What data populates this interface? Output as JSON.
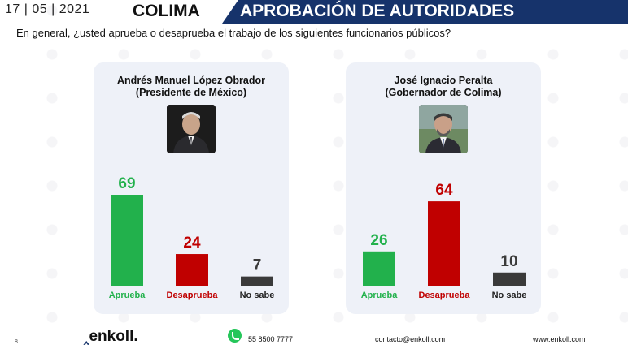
{
  "header": {
    "date": "17 | 05 | 2021",
    "state": "COLIMA",
    "title": "APROBACIÓN DE AUTORIDADES"
  },
  "question": "En general, ¿usted aprueba o desaprueba el trabajo de los siguientes funcionarios públicos?",
  "colors": {
    "aprueba": "#22b14c",
    "desaprueba": "#c00000",
    "no_sabe": "#3a3a3a",
    "header_bar": "#16336b"
  },
  "chart_data": [
    {
      "type": "bar",
      "title": "Andrés Manuel López Obrador",
      "subtitle": "(Presidente de México)",
      "categories": [
        "Aprueba",
        "Desaprueba",
        "No sabe"
      ],
      "values": [
        69,
        24,
        7
      ],
      "colors": [
        "#22b14c",
        "#c00000",
        "#3a3a3a"
      ]
    },
    {
      "type": "bar",
      "title": "José Ignacio Peralta",
      "subtitle": "(Gobernador de Colima)",
      "categories": [
        "Aprueba",
        "Desaprueba",
        "No sabe"
      ],
      "values": [
        26,
        64,
        10
      ],
      "colors": [
        "#22b14c",
        "#c00000",
        "#3a3a3a"
      ]
    }
  ],
  "footer": {
    "page": "8",
    "logo": "enkoll.",
    "phone": "55 8500 7777",
    "email": "contacto@enkoll.com",
    "website": "www.enkoll.com",
    "phone_icon": "whatsapp-icon"
  }
}
